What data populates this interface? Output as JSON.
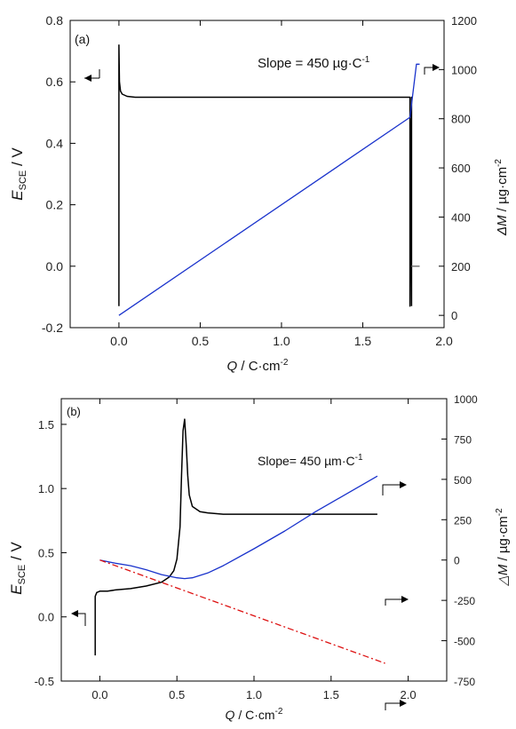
{
  "chart_data": [
    {
      "panel_label": "(a)",
      "type": "line",
      "xlabel": {
        "main": "Q",
        "rest": " / C·cm",
        "sup": "-2"
      },
      "ylabel_left": {
        "main": "E",
        "sub": "SCE",
        "rest": " / V"
      },
      "ylabel_right": {
        "main": "ΔM",
        "rest": " / µg·cm",
        "sup": "-2"
      },
      "annotation": {
        "text": "Slope = 450 µg·C",
        "sup": "-1"
      },
      "xlim": [
        -0.3,
        2.0
      ],
      "ylim_left": [
        -0.2,
        0.8
      ],
      "ylim_right": [
        -50,
        1200
      ],
      "x_ticks": [
        "0.0",
        "0.5",
        "1.0",
        "1.5",
        "2.0"
      ],
      "y_left_ticks": [
        "-0.2",
        "0.0",
        "0.2",
        "0.4",
        "0.6",
        "0.8"
      ],
      "y_right_ticks": [
        "0",
        "200",
        "400",
        "600",
        "800",
        "1000",
        "1200"
      ],
      "grid": false,
      "series": [
        {
          "axis": "left",
          "color": "#000000",
          "x": [
            0.0,
            0.0,
            0.003,
            0.01,
            0.02,
            0.05,
            0.1,
            0.5,
            1.0,
            1.5,
            1.79,
            1.79,
            1.8,
            1.8
          ],
          "y": [
            -0.13,
            0.72,
            0.6,
            0.57,
            0.56,
            0.553,
            0.55,
            0.55,
            0.55,
            0.55,
            0.55,
            -0.13,
            0.55,
            -0.13
          ]
        },
        {
          "axis": "right",
          "color": "#1a33cc",
          "x": [
            0.0,
            1.79,
            1.83,
            1.85
          ],
          "y": [
            0,
            806,
            1022,
            1022
          ]
        },
        {
          "axis": "left",
          "color": "#777777",
          "x": [
            1.8,
            1.85
          ],
          "y": [
            0.0,
            0.0
          ]
        }
      ]
    },
    {
      "panel_label": "(b)",
      "type": "line",
      "xlabel": {
        "main": "Q",
        "rest": " / C·cm",
        "sup": "-2"
      },
      "ylabel_left": {
        "main": "E",
        "sub": "SCE",
        "rest": " / V"
      },
      "ylabel_right": {
        "main": "△M",
        "rest": " / µg·cm",
        "sup": "-2"
      },
      "annotation": {
        "text": "Slope= 450 µm·C",
        "sup": "-1"
      },
      "xlim": [
        -0.25,
        2.25
      ],
      "ylim_left": [
        -0.5,
        1.7
      ],
      "ylim_right": [
        -750,
        1000
      ],
      "x_ticks": [
        "0.0",
        "0.5",
        "1.0",
        "1.5",
        "2.0"
      ],
      "y_left_ticks": [
        "-0.5",
        "0.0",
        "0.5",
        "1.0",
        "1.5"
      ],
      "y_right_ticks": [
        "-750",
        "-500",
        "-250",
        "0",
        "250",
        "500",
        "750",
        "1000"
      ],
      "grid": false,
      "series": [
        {
          "axis": "left",
          "color": "#000000",
          "x": [
            -0.03,
            -0.03,
            -0.02,
            0.0,
            0.05,
            0.1,
            0.2,
            0.3,
            0.4,
            0.45,
            0.48,
            0.5,
            0.52,
            0.53,
            0.54,
            0.55,
            0.56,
            0.57,
            0.58,
            0.6,
            0.65,
            0.7,
            0.8,
            1.0,
            1.5,
            1.8
          ],
          "y": [
            -0.3,
            0.16,
            0.19,
            0.2,
            0.2,
            0.21,
            0.22,
            0.24,
            0.27,
            0.31,
            0.36,
            0.45,
            0.7,
            1.1,
            1.45,
            1.54,
            1.35,
            1.1,
            0.95,
            0.86,
            0.82,
            0.81,
            0.8,
            0.8,
            0.8,
            0.8
          ]
        },
        {
          "axis": "right",
          "color": "#1a33cc",
          "x": [
            0.0,
            0.1,
            0.2,
            0.3,
            0.4,
            0.5,
            0.55,
            0.6,
            0.7,
            0.8,
            1.0,
            1.2,
            1.4,
            1.6,
            1.8
          ],
          "y": [
            0,
            -20,
            -35,
            -60,
            -90,
            -110,
            -115,
            -110,
            -80,
            -35,
            70,
            180,
            300,
            410,
            520
          ]
        },
        {
          "axis": "right",
          "color": "#dd1111",
          "dash": true,
          "x": [
            0.0,
            1.85
          ],
          "y": [
            0,
            -640
          ]
        }
      ]
    }
  ]
}
